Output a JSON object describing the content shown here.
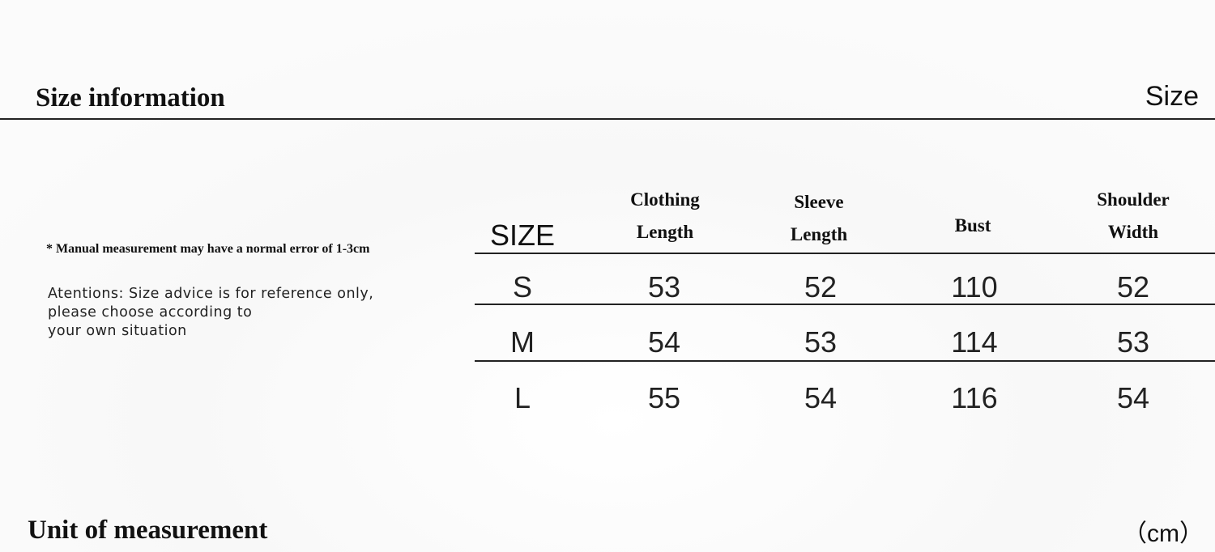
{
  "header": {
    "title": "Size information",
    "right_label": "Size"
  },
  "notes": {
    "error_note": "* Manual measurement may have a normal error of 1-3cm",
    "attention_lines": [
      "Atentions: Size advice is for reference only,",
      "please choose according to",
      "your own situation"
    ]
  },
  "table": {
    "columns": [
      {
        "line1": "SIZE",
        "line2": ""
      },
      {
        "line1": "Clothing",
        "line2": "Length"
      },
      {
        "line1": "Sleeve",
        "line2": "Length"
      },
      {
        "line1": "Bust",
        "line2": ""
      },
      {
        "line1": "Shoulder",
        "line2": "Width"
      }
    ],
    "rows": [
      [
        "S",
        "53",
        "52",
        "110",
        "52"
      ],
      [
        "M",
        "54",
        "53",
        "114",
        "53"
      ],
      [
        "L",
        "55",
        "54",
        "116",
        "54"
      ]
    ]
  },
  "footer": {
    "title": "Unit of measurement",
    "unit": "（cm）"
  }
}
